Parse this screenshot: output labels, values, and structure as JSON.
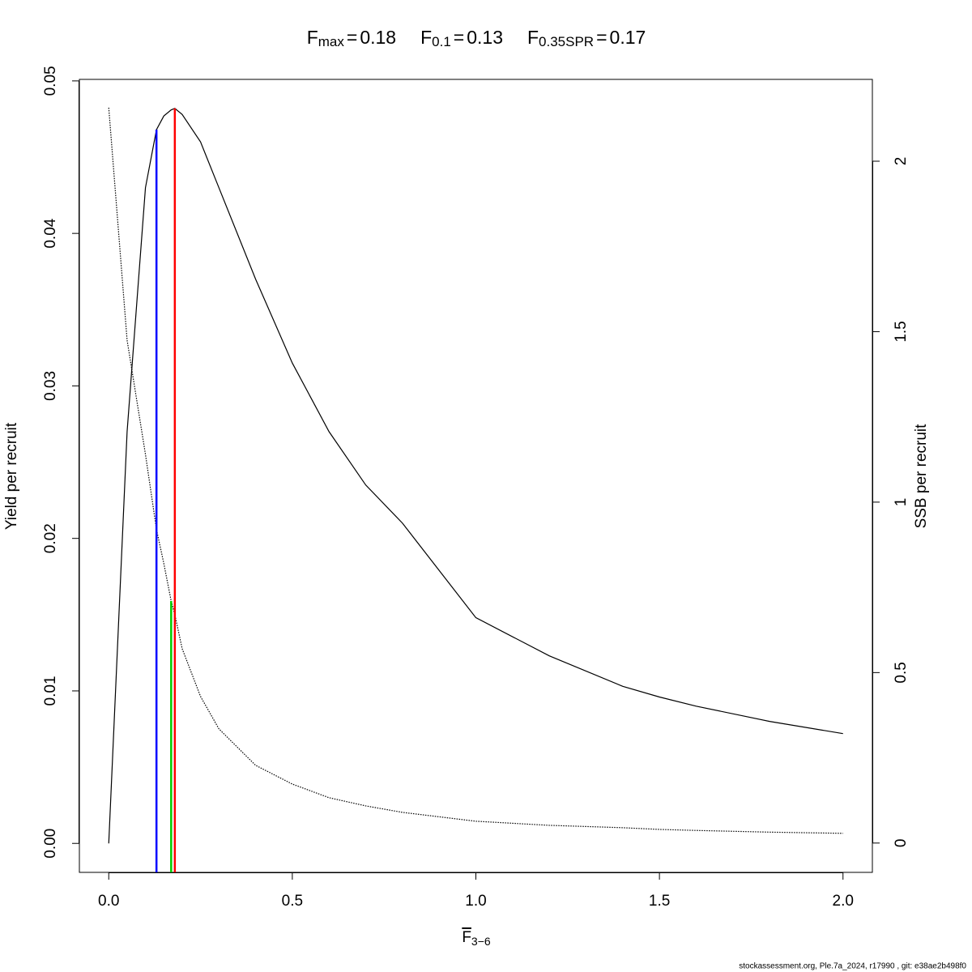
{
  "chart_data": {
    "type": "line",
    "title_parts": [
      {
        "main": "F",
        "sub": "max",
        "eq": "=",
        "value": 0.18
      },
      {
        "main": "F",
        "sub": "0.1",
        "eq": "=",
        "value": 0.13
      },
      {
        "main": "F",
        "sub": "0.35SPR",
        "eq": "=",
        "value": 0.17
      }
    ],
    "xlabel": {
      "main": "F",
      "sub": "3−6"
    },
    "ylabel": "Yield per recruit",
    "y2label": "SSB per recruit",
    "footer": "stockassessment.org, Ple.7a_2024, r17990 , git: e38ae2b498f0",
    "x": [
      0,
      0.05,
      0.1,
      0.13,
      0.15,
      0.17,
      0.18,
      0.2,
      0.25,
      0.3,
      0.4,
      0.5,
      0.6,
      0.7,
      0.8,
      1.0,
      1.2,
      1.4,
      1.5,
      1.6,
      1.8,
      2.0
    ],
    "series": [
      {
        "color": "#000000",
        "style": "solid",
        "values": [
          0,
          0.027,
          0.043,
          0.0468,
          0.0477,
          0.0481,
          0.0482,
          0.0478,
          0.046,
          0.043,
          0.037,
          0.0315,
          0.027,
          0.0235,
          0.021,
          0.0148,
          0.0123,
          0.0103,
          0.0096,
          0.009,
          0.008,
          0.0072
        ]
      },
      {
        "color": "#000000",
        "style": "dotted",
        "axis": "y2",
        "values": [
          2.157,
          1.475,
          1.14,
          0.92,
          0.82,
          0.71,
          0.67,
          0.57,
          0.43,
          0.335,
          0.228,
          0.173,
          0.133,
          0.109,
          0.09,
          0.064,
          0.052,
          0.045,
          0.04,
          0.037,
          0.032,
          0.0285
        ]
      }
    ],
    "ref_lines": [
      {
        "title_index": 0,
        "color": "#ff0000",
        "y": 0.0482
      },
      {
        "title_index": 1,
        "color": "#0000ff",
        "y": 0.0468
      },
      {
        "title_index": 2,
        "color": "#00cd00",
        "y": 0.71,
        "axis": "y2"
      }
    ],
    "xlim": [
      -0.08,
      2.08
    ],
    "xticks": [
      {
        "value": 0,
        "label": "0.0"
      },
      0.5,
      {
        "value": 1,
        "label": "1.0"
      },
      1.5,
      {
        "value": 2,
        "label": "2.0"
      }
    ],
    "ylim": [
      -0.0019,
      0.0501
    ],
    "yticks": [
      {
        "value": 0,
        "label": "0.00"
      },
      0.01,
      0.02,
      0.03,
      0.04,
      0.05
    ],
    "y2lim": [
      -0.086,
      2.24
    ],
    "y2ticks": [
      0,
      0.5,
      1,
      1.5,
      2
    ],
    "grid": false
  }
}
